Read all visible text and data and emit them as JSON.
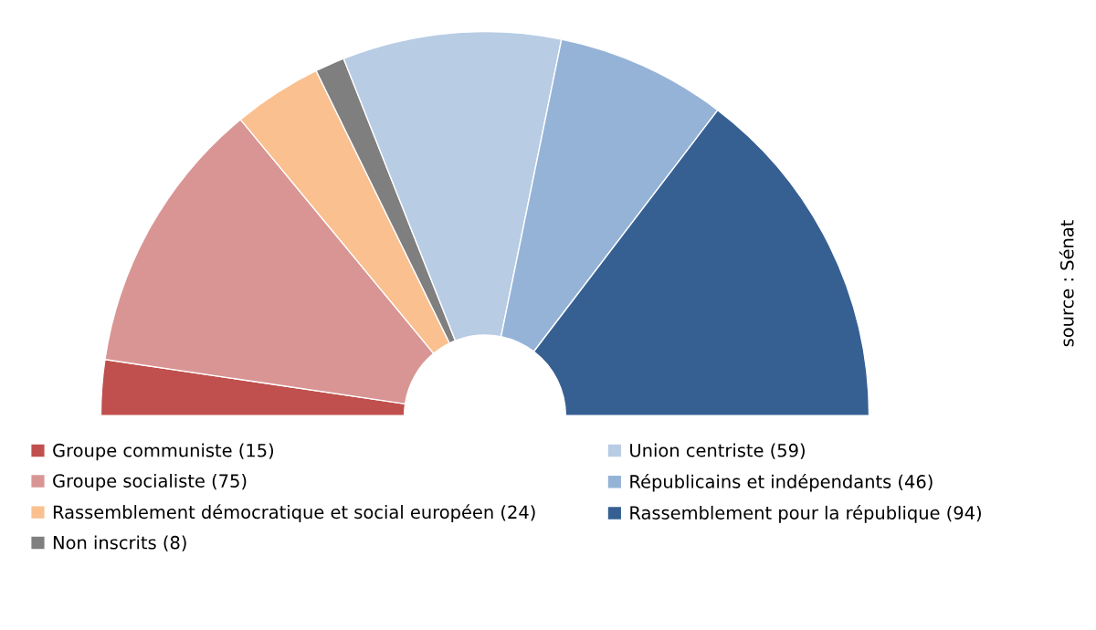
{
  "chart_data": {
    "type": "donut",
    "categories": [
      "Groupe communiste (15)",
      "Groupe socialiste (75)",
      "Rassemblement démocratique et social européen (24)",
      "Non inscrits (8)",
      "Union centriste (59)",
      "Républicains et indépendants (46)",
      "Rassemblement pour la république (94)"
    ],
    "values": [
      15,
      75,
      24,
      8,
      59,
      46,
      94
    ],
    "colors": [
      "#c0504d",
      "#d99594",
      "#fac08f",
      "#7f7f7f",
      "#b8cce4",
      "#95b3d7",
      "#366092"
    ],
    "legend": "bottom",
    "annotations": [
      "source : Sénat"
    ]
  }
}
